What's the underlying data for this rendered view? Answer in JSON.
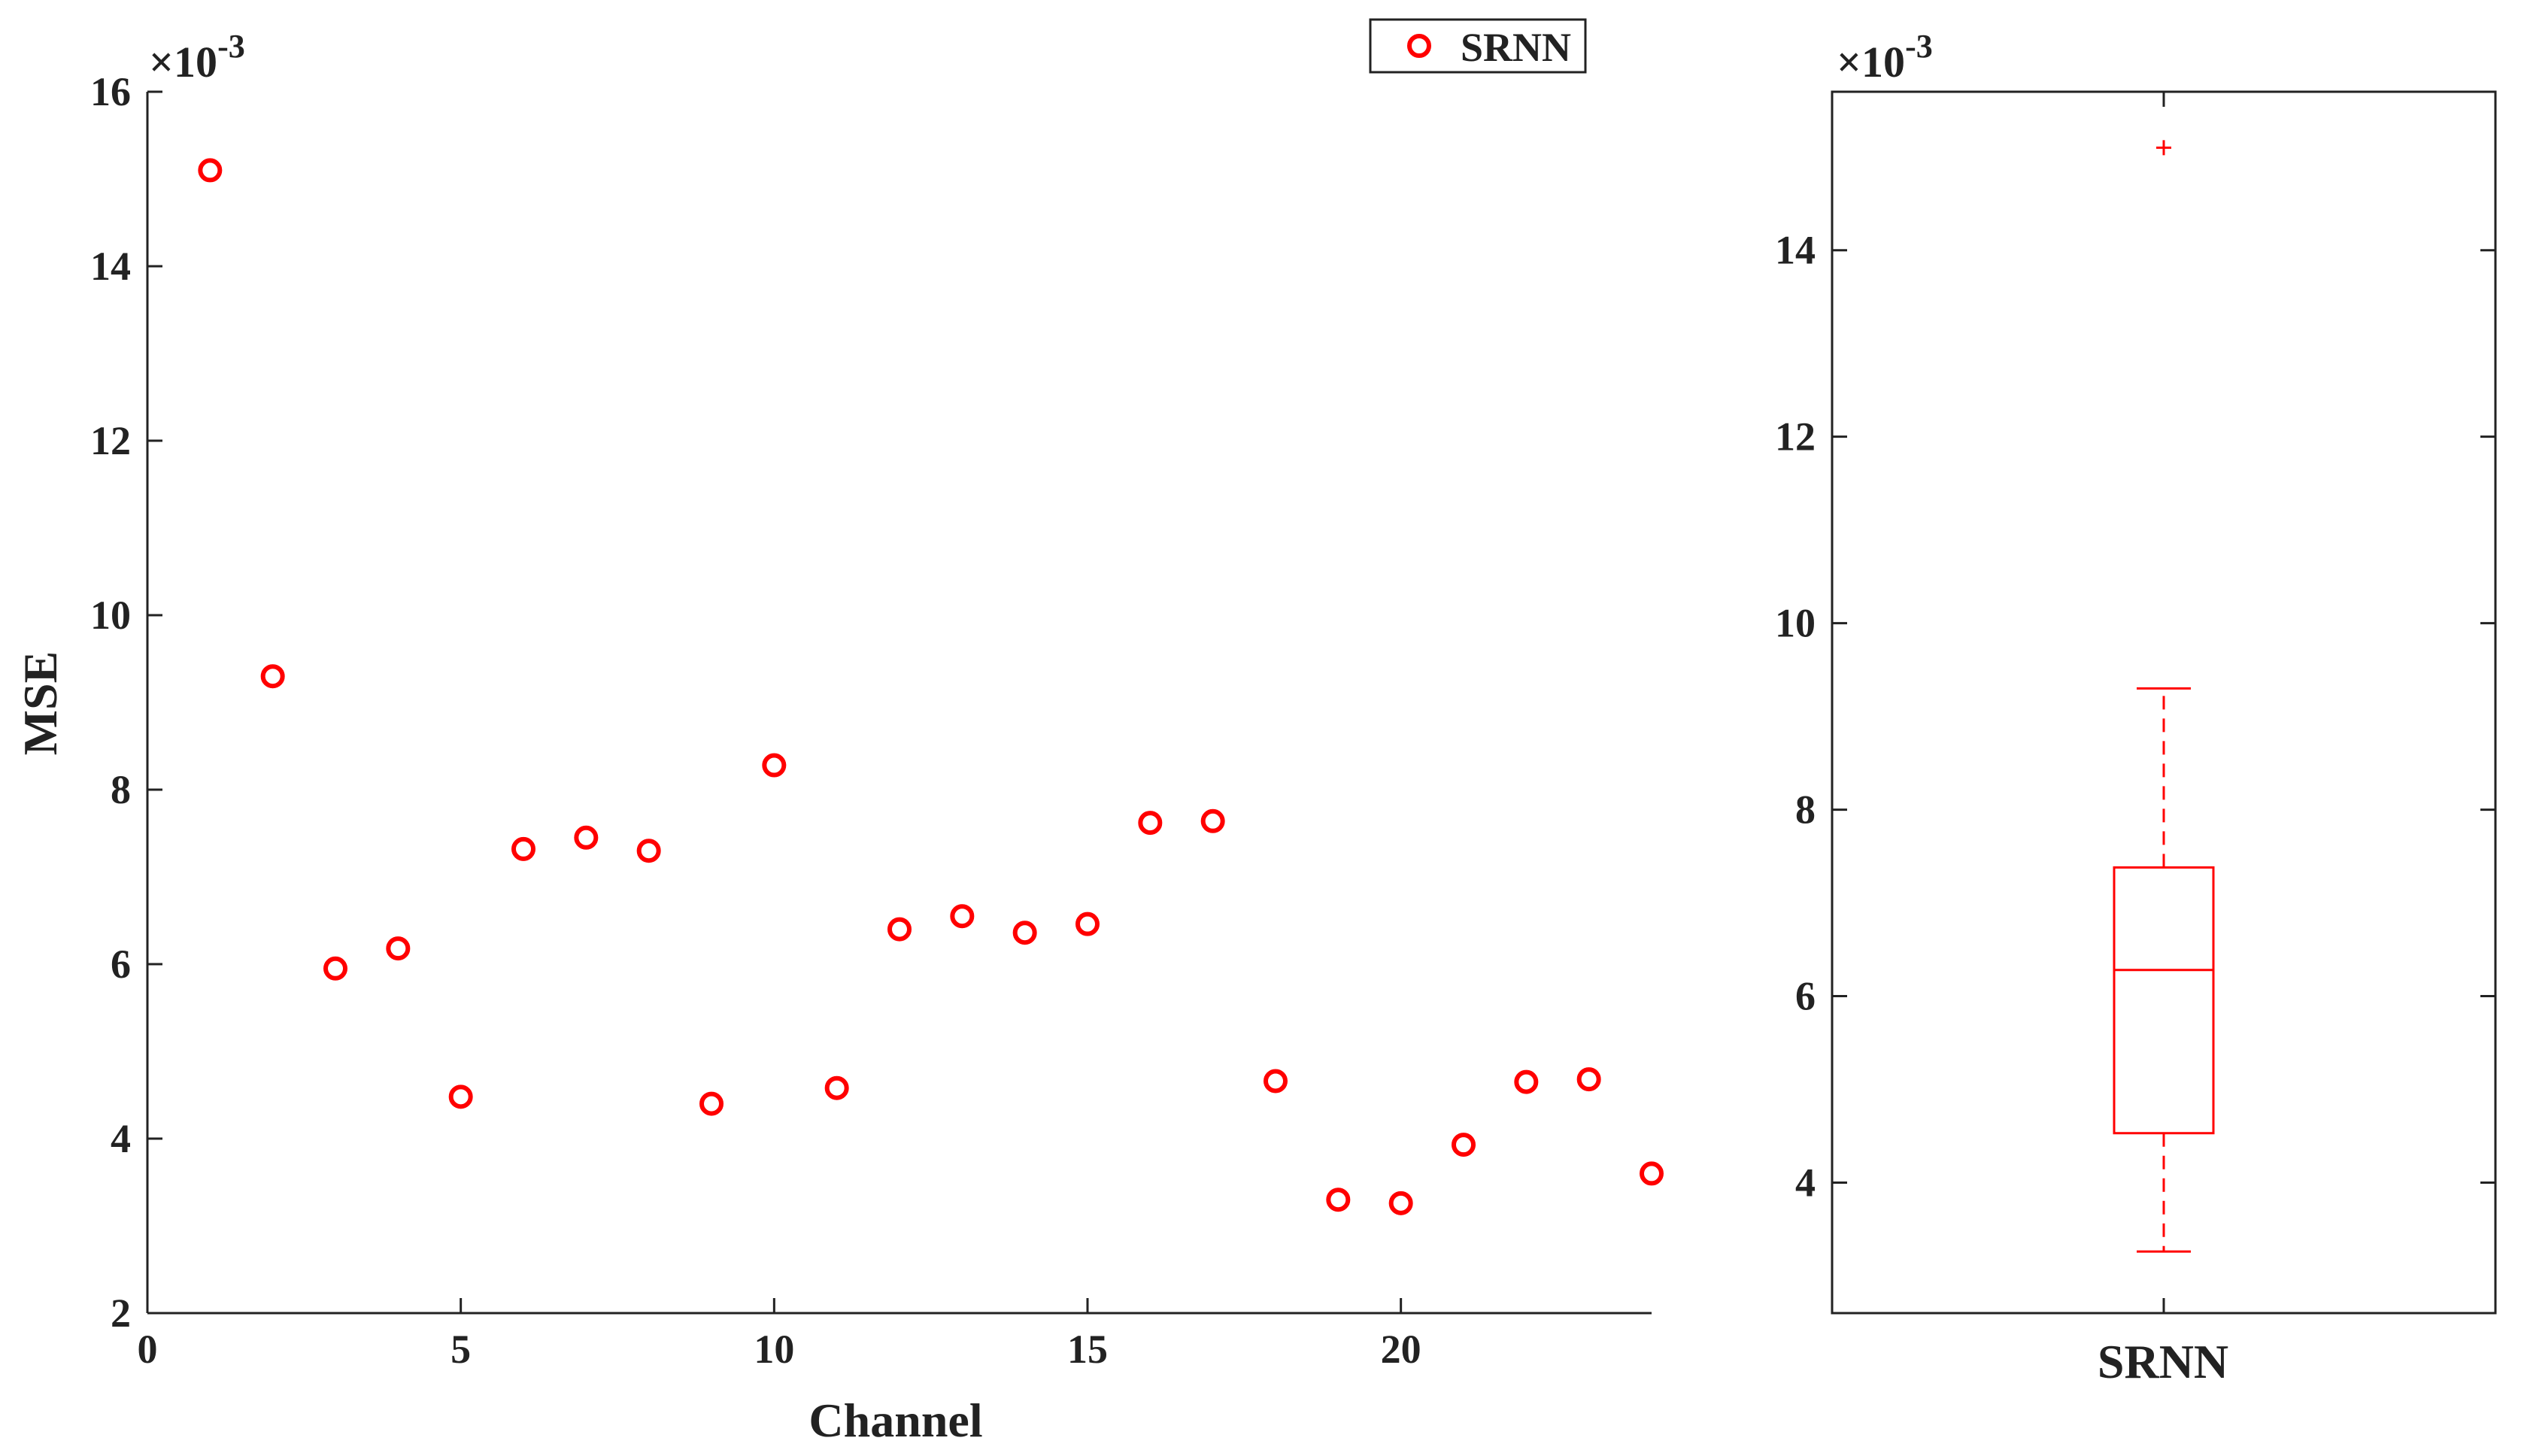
{
  "chart_data": [
    {
      "type": "scatter",
      "xlabel": "Channel",
      "ylabel": "MSE",
      "exponent_label": "×10",
      "exponent_power": "-3",
      "xlim": [
        0,
        24
      ],
      "ylim": [
        2,
        16
      ],
      "xticks": [
        0,
        5,
        10,
        15,
        20
      ],
      "yticks": [
        2,
        4,
        6,
        8,
        10,
        12,
        14,
        16
      ],
      "grid": false,
      "legend": {
        "position": "top-right",
        "entries": [
          "SRNN"
        ]
      },
      "series": [
        {
          "name": "SRNN",
          "marker": "circle",
          "color": "#ff0000",
          "x": [
            1,
            2,
            3,
            4,
            5,
            6,
            7,
            8,
            9,
            10,
            11,
            12,
            13,
            14,
            15,
            16,
            17,
            18,
            19,
            20,
            21,
            22,
            23,
            24
          ],
          "y": [
            15.1,
            9.3,
            5.95,
            6.18,
            4.48,
            7.32,
            7.45,
            7.3,
            4.4,
            8.28,
            4.58,
            6.4,
            6.55,
            6.36,
            6.46,
            7.62,
            7.64,
            4.66,
            3.3,
            3.26,
            3.93,
            4.65,
            4.68,
            3.6
          ]
        }
      ]
    },
    {
      "type": "box",
      "categories": [
        "SRNN"
      ],
      "exponent_label": "×10",
      "exponent_power": "-3",
      "ylim": [
        2.6,
        15.7
      ],
      "yticks": [
        4,
        6,
        8,
        10,
        12,
        14
      ],
      "color": "#ff0000",
      "series": [
        {
          "name": "SRNN",
          "whisker_low": 3.26,
          "q1": 4.53,
          "median": 6.28,
          "q3": 7.38,
          "whisker_high": 9.3,
          "outliers": [
            15.1
          ]
        }
      ]
    }
  ]
}
